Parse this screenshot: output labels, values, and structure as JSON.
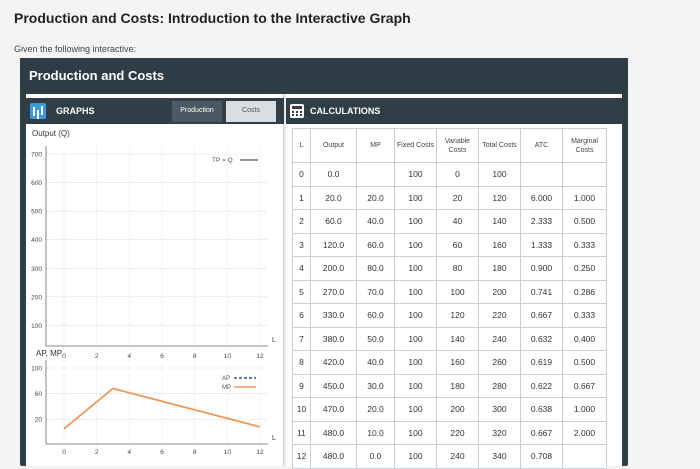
{
  "page": {
    "title": "Production and Costs: Introduction to the Interactive Graph",
    "subtitle": "Given the following interactive:"
  },
  "widget": {
    "title": "Production and Costs"
  },
  "graphs": {
    "label": "GRAPHS",
    "tabs": [
      {
        "label": "Production",
        "active": true
      },
      {
        "label": "Costs",
        "active": false
      }
    ],
    "top_chart": {
      "ylabel": "Output (Q)",
      "xlabel": "L",
      "legend": "TP = Q",
      "yticks": [
        "700",
        "600",
        "500",
        "400",
        "300",
        "200",
        "100"
      ],
      "xticks": [
        "0",
        "2",
        "4",
        "6",
        "8",
        "10",
        "12"
      ]
    },
    "bottom_chart": {
      "ylabel": "AP, MP",
      "xlabel": "L",
      "legend_ap": "AP",
      "legend_mp": "MP",
      "yticks": [
        "100",
        "60",
        "20"
      ],
      "xticks": [
        "0",
        "2",
        "4",
        "6",
        "8",
        "10",
        "12"
      ]
    }
  },
  "chart_data": [
    {
      "type": "line",
      "ylabel": "Output (Q)",
      "xlabel": "L",
      "ylim": [
        0,
        700
      ],
      "xlim": [
        0,
        12
      ],
      "series": [
        {
          "name": "TP = Q",
          "x": [],
          "y": []
        }
      ]
    },
    {
      "type": "line",
      "ylabel": "AP, MP",
      "xlabel": "L",
      "ylim": [
        0,
        100
      ],
      "xlim": [
        0,
        12
      ],
      "series": [
        {
          "name": "AP",
          "x": [],
          "y": []
        },
        {
          "name": "MP",
          "x": [
            0,
            3,
            12
          ],
          "y": [
            5,
            68,
            8
          ]
        }
      ]
    }
  ],
  "calculations": {
    "label": "CALCULATIONS",
    "headers": [
      "L",
      "Output",
      "MP",
      "Fixed Costs",
      "Variable Costs",
      "Total Costs",
      "ATC",
      "Marginal Costs"
    ],
    "rows": [
      [
        "0",
        "0.0",
        "",
        "100",
        "0",
        "100",
        "",
        ""
      ],
      [
        "1",
        "20.0",
        "20.0",
        "100",
        "20",
        "120",
        "6.000",
        "1.000"
      ],
      [
        "2",
        "60.0",
        "40.0",
        "100",
        "40",
        "140",
        "2.333",
        "0.500"
      ],
      [
        "3",
        "120.0",
        "60.0",
        "100",
        "60",
        "160",
        "1.333",
        "0.333"
      ],
      [
        "4",
        "200.0",
        "80.0",
        "100",
        "80",
        "180",
        "0.900",
        "0.250"
      ],
      [
        "5",
        "270.0",
        "70.0",
        "100",
        "100",
        "200",
        "0.741",
        "0.286"
      ],
      [
        "6",
        "330.0",
        "60.0",
        "100",
        "120",
        "220",
        "0.667",
        "0.333"
      ],
      [
        "7",
        "380.0",
        "50.0",
        "100",
        "140",
        "240",
        "0.632",
        "0.400"
      ],
      [
        "8",
        "420.0",
        "40.0",
        "100",
        "160",
        "260",
        "0.619",
        "0.500"
      ],
      [
        "9",
        "450.0",
        "30.0",
        "100",
        "180",
        "280",
        "0.622",
        "0.667"
      ],
      [
        "10",
        "470.0",
        "20.0",
        "100",
        "200",
        "300",
        "0.638",
        "1.000"
      ],
      [
        "11",
        "480.0",
        "10.0",
        "100",
        "220",
        "320",
        "0.667",
        "2.000"
      ],
      [
        "12",
        "480.0",
        "0.0",
        "100",
        "240",
        "340",
        "0.708",
        ""
      ]
    ]
  },
  "colors": {
    "mp_line": "#f0975a",
    "ap_legend": "#2d5f9e",
    "mp_legend": "#f0975a",
    "header_bg": "#2f3e47"
  }
}
